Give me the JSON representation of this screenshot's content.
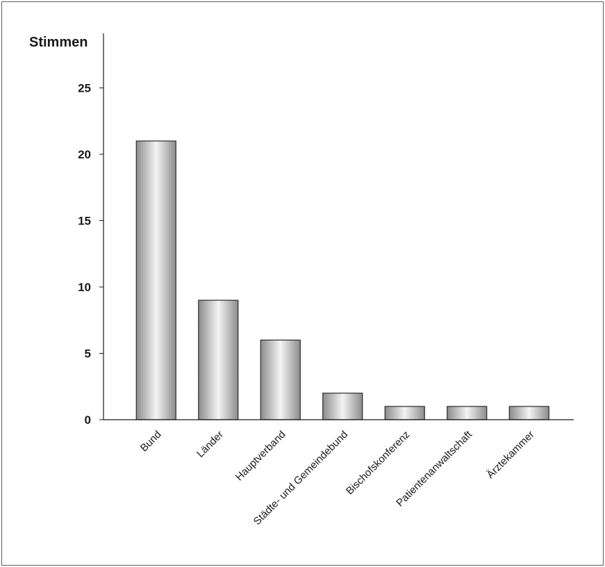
{
  "chart_data": {
    "type": "bar",
    "ylabel": "Stimmen",
    "ylim": [
      0,
      27.5
    ],
    "yticks": [
      0,
      5,
      10,
      15,
      20,
      25
    ],
    "categories": [
      "Bund",
      "Länder",
      "Hauptverband",
      "Städte- und Gemeindebund",
      "Bischofskonferenz",
      "Patientenanwaltschaft",
      "Ärztekammer"
    ],
    "values": [
      21,
      9,
      6,
      2,
      1,
      1,
      1
    ],
    "grid": false,
    "legend": "none",
    "colors": {
      "bar_edge": "#2a2a2a",
      "bar_dark": "#8c8c8c",
      "bar_light": "#f4f4f4",
      "axis": "#1a1a1a"
    }
  }
}
